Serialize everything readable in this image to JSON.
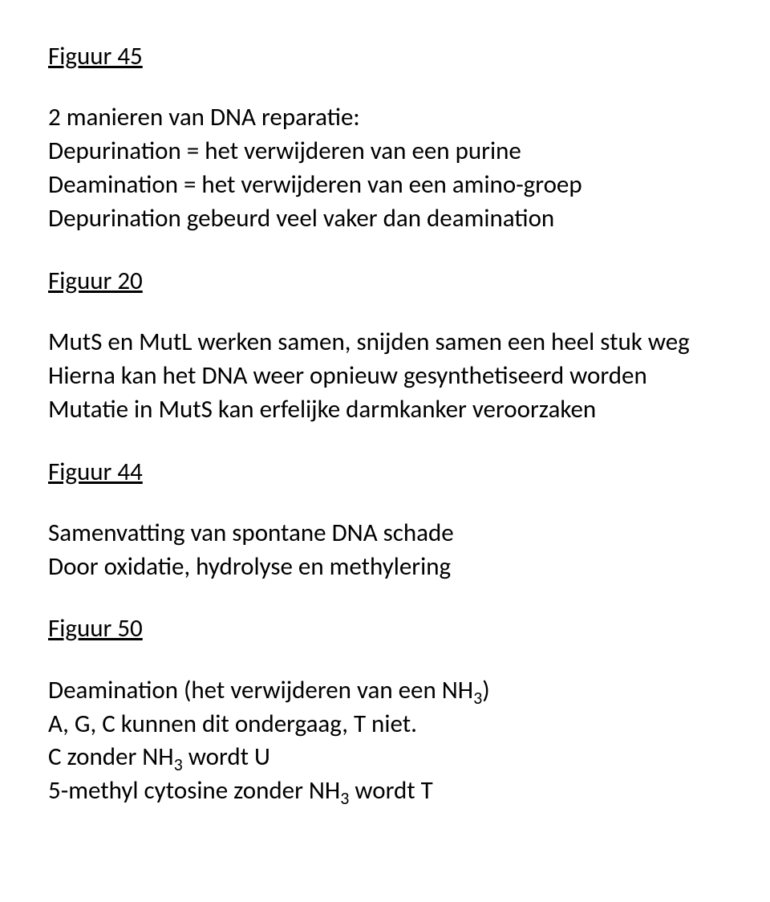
{
  "blocks": [
    {
      "type": "heading",
      "text": "Figuur 45"
    },
    {
      "type": "para",
      "lines": [
        "2 manieren van DNA reparatie:",
        "Depurination = het verwijderen van een purine",
        "Deamination = het verwijderen van een amino-groep",
        "Depurination gebeurd veel vaker dan deamination"
      ]
    },
    {
      "type": "heading",
      "text": "Figuur 20"
    },
    {
      "type": "para",
      "lines": [
        "MutS en MutL werken samen, snijden samen een heel stuk weg",
        "Hierna kan het DNA weer opnieuw gesynthetiseerd worden",
        "Mutatie in MutS kan erfelijke darmkanker veroorzaken"
      ]
    },
    {
      "type": "heading",
      "text": "Figuur 44"
    },
    {
      "type": "para",
      "lines": [
        "Samenvatting van spontane DNA schade",
        "Door oxidatie, hydrolyse en methylering"
      ]
    },
    {
      "type": "heading",
      "text": "Figuur 50"
    },
    {
      "type": "para-rich",
      "lines": [
        [
          {
            "t": "Deamination (het verwijderen van een NH"
          },
          {
            "t": "3",
            "sub": true
          },
          {
            "t": ")"
          }
        ],
        [
          {
            "t": "A, G, C kunnen dit ondergaag, T niet."
          }
        ],
        [
          {
            "t": "C zonder NH"
          },
          {
            "t": "3",
            "sub": true
          },
          {
            "t": " wordt U"
          }
        ],
        [
          {
            "t": "5-methyl cytosine zonder NH"
          },
          {
            "t": "3",
            "sub": true
          },
          {
            "t": " wordt T"
          }
        ]
      ]
    }
  ]
}
